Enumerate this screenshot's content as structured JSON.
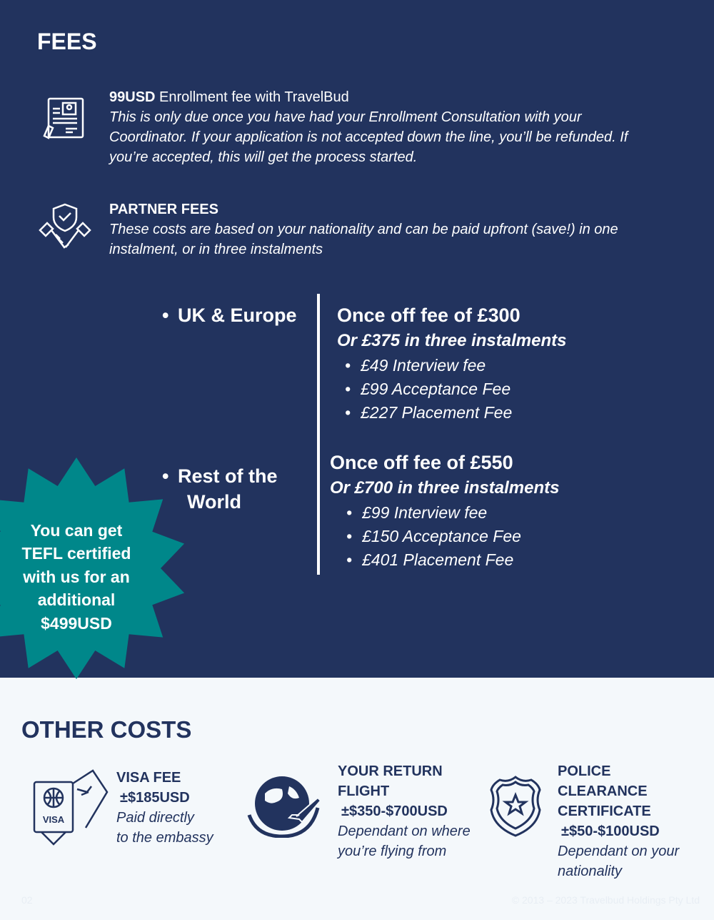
{
  "fees": {
    "title": "FEES",
    "enrollment": {
      "amount": "99USD",
      "label": " Enrollment fee with TravelBud",
      "desc": "This is only due once you have had your Enrollment Consultation with your Coordinator. If your application is not accepted down the line, you’ll be refunded. If you’re accepted, this will get the process started."
    },
    "partner": {
      "title": "PARTNER FEES",
      "desc": "These costs are based on your nationality and can be paid upfront (save!) in one instalment, or in three instalments"
    },
    "regions": [
      {
        "name": "UK & Europe",
        "once": "Once off fee of £300",
        "instal": "Or £375 in three instalments",
        "items": [
          "£49 Interview fee",
          "£99 Acceptance Fee",
          "£227 Placement Fee"
        ]
      },
      {
        "name_line1": "Rest of the",
        "name_line2": "World",
        "once": "Once off fee of £550",
        "instal": "Or £700 in three instalments",
        "items": [
          "£99 Interview fee",
          "£150 Acceptance Fee",
          "£401 Placement Fee"
        ]
      }
    ],
    "tefl": [
      "You can get",
      "TEFL certified",
      "with us for an",
      "additional",
      "$499USD"
    ]
  },
  "other": {
    "title": "OTHER COSTS",
    "visa": {
      "title": "VISA FEE",
      "amount": "±$185USD",
      "desc1": "Paid directly",
      "desc2": "to the embassy",
      "icon_text": "VISA"
    },
    "flight": {
      "title1": "YOUR RETURN",
      "title2": "FLIGHT",
      "amount": "±$350-$700USD",
      "desc1": "Dependant on where",
      "desc2": "you’re flying from"
    },
    "police": {
      "title1": "POLICE",
      "title2": "CLEARANCE",
      "title3": "CERTIFICATE",
      "amount": "±$50-$100USD",
      "desc1": "Dependant on your",
      "desc2": "nationality"
    }
  },
  "footer": {
    "page": "02",
    "copyright": "© 2013 – 2023 Travelbud Holdings Pty Ltd"
  },
  "colors": {
    "navy": "#22335e",
    "teal": "#00878a",
    "light": "#f4f8fb"
  }
}
